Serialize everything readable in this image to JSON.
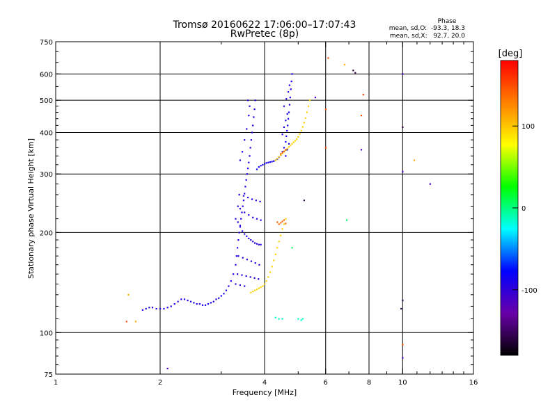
{
  "chart_data": {
    "type": "scatter",
    "title": "Tromsø 20160622 17:06:00–17:07:43",
    "subtitle": "RwPretec (8p)",
    "xlabel": "Frequency [MHz]",
    "ylabel": "Stationary phase Virtual Height [km]",
    "x_scale": "log2",
    "y_scale": "log",
    "xlim": [
      1,
      16
    ],
    "ylim": [
      75,
      750
    ],
    "grid": true,
    "xticks": [
      {
        "value": 1,
        "label": "1"
      },
      {
        "value": 2,
        "label": "2"
      },
      {
        "value": 4,
        "label": "4"
      },
      {
        "value": 6,
        "label": "6"
      },
      {
        "value": 8,
        "label": "8"
      },
      {
        "value": 10,
        "label": "10"
      },
      {
        "value": 16,
        "label": "16"
      }
    ],
    "yticks": [
      {
        "value": 75,
        "label": "75"
      },
      {
        "value": 100,
        "label": "100"
      },
      {
        "value": 200,
        "label": "200"
      },
      {
        "value": 300,
        "label": "300"
      },
      {
        "value": 400,
        "label": "400"
      },
      {
        "value": 500,
        "label": "500"
      },
      {
        "value": 600,
        "label": "600"
      },
      {
        "value": 750,
        "label": "750"
      }
    ],
    "phase_stats": {
      "heading": "Phase",
      "line_o": "mean, sd,O:  -93.3, 18.3",
      "line_x": "mean, sd,X:   92.7, 20.0"
    },
    "colorbar": {
      "label": "[deg]",
      "min": -180,
      "max": 180,
      "ticks": [
        {
          "value": 100,
          "label": "100"
        },
        {
          "value": 0,
          "label": "0"
        },
        {
          "value": -100,
          "label": "-100"
        }
      ],
      "stops": [
        "#000000",
        "#6a00a8",
        "#0000ff",
        "#00ffff",
        "#00ff00",
        "#ffff00",
        "#ff8000",
        "#ff0000"
      ]
    },
    "point_groups": [
      {
        "trace": "O",
        "phase": -90,
        "points": [
          [
            1.78,
            117
          ],
          [
            1.82,
            118
          ],
          [
            1.86,
            119
          ],
          [
            1.9,
            119
          ],
          [
            1.95,
            118
          ],
          [
            2.0,
            118
          ],
          [
            2.05,
            118
          ],
          [
            2.1,
            119
          ],
          [
            2.15,
            120
          ],
          [
            2.2,
            122
          ],
          [
            2.25,
            124
          ],
          [
            2.3,
            126
          ],
          [
            2.35,
            126
          ],
          [
            2.4,
            125
          ],
          [
            2.45,
            124
          ],
          [
            2.5,
            123
          ],
          [
            2.55,
            122
          ],
          [
            2.6,
            122
          ],
          [
            2.65,
            121
          ],
          [
            2.7,
            121
          ],
          [
            2.75,
            122
          ],
          [
            2.8,
            123
          ],
          [
            2.85,
            124
          ],
          [
            2.9,
            126
          ],
          [
            2.95,
            127
          ],
          [
            3.0,
            129
          ],
          [
            3.05,
            131
          ],
          [
            3.1,
            134
          ],
          [
            3.15,
            138
          ],
          [
            3.2,
            143
          ],
          [
            3.25,
            150
          ],
          [
            3.3,
            160
          ],
          [
            3.32,
            170
          ],
          [
            3.34,
            180
          ],
          [
            3.36,
            190
          ],
          [
            3.38,
            200
          ],
          [
            3.4,
            210
          ],
          [
            3.42,
            220
          ],
          [
            3.44,
            230
          ],
          [
            3.46,
            240
          ],
          [
            3.48,
            250
          ],
          [
            3.5,
            262
          ],
          [
            3.52,
            275
          ],
          [
            3.54,
            288
          ],
          [
            3.56,
            300
          ],
          [
            3.58,
            312
          ],
          [
            3.6,
            325
          ],
          [
            3.62,
            340
          ],
          [
            3.64,
            360
          ],
          [
            3.66,
            380
          ],
          [
            3.68,
            400
          ],
          [
            3.7,
            420
          ],
          [
            3.72,
            445
          ],
          [
            3.74,
            470
          ],
          [
            3.76,
            500
          ],
          [
            3.4,
            330
          ],
          [
            3.45,
            350
          ],
          [
            3.5,
            380
          ],
          [
            3.55,
            410
          ],
          [
            3.6,
            450
          ],
          [
            3.62,
            480
          ],
          [
            3.58,
            500
          ]
        ]
      },
      {
        "trace": "O",
        "phase": -95,
        "points": [
          [
            3.3,
            220
          ],
          [
            3.35,
            215
          ],
          [
            3.4,
            208
          ],
          [
            3.45,
            202
          ],
          [
            3.5,
            198
          ],
          [
            3.55,
            195
          ],
          [
            3.6,
            192
          ],
          [
            3.65,
            190
          ],
          [
            3.7,
            188
          ],
          [
            3.75,
            186
          ],
          [
            3.8,
            185
          ],
          [
            3.85,
            184
          ],
          [
            3.9,
            184
          ],
          [
            3.35,
            240
          ],
          [
            3.4,
            236
          ],
          [
            3.5,
            230
          ],
          [
            3.6,
            226
          ],
          [
            3.7,
            222
          ],
          [
            3.8,
            220
          ],
          [
            3.9,
            218
          ],
          [
            3.38,
            260
          ],
          [
            3.48,
            258
          ],
          [
            3.58,
            255
          ],
          [
            3.68,
            252
          ],
          [
            3.78,
            250
          ],
          [
            3.88,
            248
          ],
          [
            3.36,
            170
          ],
          [
            3.46,
            168
          ],
          [
            3.56,
            166
          ],
          [
            3.66,
            164
          ],
          [
            3.76,
            162
          ],
          [
            3.86,
            160
          ],
          [
            3.34,
            150
          ],
          [
            3.44,
            149
          ],
          [
            3.54,
            148
          ],
          [
            3.64,
            147
          ],
          [
            3.74,
            146
          ],
          [
            3.84,
            145
          ],
          [
            3.3,
            140
          ],
          [
            3.4,
            139
          ],
          [
            3.5,
            138
          ]
        ]
      },
      {
        "trace": "O",
        "phase": -88,
        "points": [
          [
            3.8,
            310
          ],
          [
            3.85,
            315
          ],
          [
            3.9,
            318
          ],
          [
            3.95,
            320
          ],
          [
            4.0,
            322
          ],
          [
            4.05,
            324
          ],
          [
            4.1,
            325
          ],
          [
            4.15,
            326
          ],
          [
            4.2,
            327
          ],
          [
            4.25,
            328
          ],
          [
            4.3,
            330
          ],
          [
            4.35,
            333
          ],
          [
            4.4,
            337
          ],
          [
            4.45,
            342
          ],
          [
            4.5,
            350
          ],
          [
            4.55,
            360
          ],
          [
            4.6,
            375
          ],
          [
            4.62,
            390
          ],
          [
            4.64,
            405
          ],
          [
            4.66,
            420
          ],
          [
            4.68,
            440
          ],
          [
            4.7,
            460
          ],
          [
            4.72,
            485
          ],
          [
            4.74,
            510
          ],
          [
            4.76,
            540
          ],
          [
            4.78,
            570
          ],
          [
            4.8,
            600
          ],
          [
            4.6,
            340
          ],
          [
            4.65,
            355
          ],
          [
            4.7,
            370
          ],
          [
            4.5,
            395
          ],
          [
            4.55,
            415
          ],
          [
            4.6,
            435
          ],
          [
            4.65,
            455
          ],
          [
            4.55,
            480
          ],
          [
            4.62,
            505
          ],
          [
            4.68,
            530
          ],
          [
            4.72,
            555
          ]
        ]
      },
      {
        "trace": "X",
        "phase": 95,
        "points": [
          [
            3.65,
            132
          ],
          [
            3.7,
            133
          ],
          [
            3.75,
            134
          ],
          [
            3.8,
            135
          ],
          [
            3.85,
            136
          ],
          [
            3.9,
            137
          ],
          [
            3.95,
            138
          ],
          [
            4.0,
            140
          ],
          [
            4.05,
            143
          ],
          [
            4.1,
            147
          ],
          [
            4.15,
            152
          ],
          [
            4.2,
            158
          ],
          [
            4.25,
            165
          ],
          [
            4.3,
            172
          ],
          [
            4.35,
            180
          ],
          [
            4.4,
            188
          ],
          [
            4.45,
            196
          ],
          [
            4.5,
            205
          ],
          [
            4.55,
            212
          ],
          [
            4.6,
            220
          ],
          [
            4.3,
            330
          ],
          [
            4.35,
            334
          ],
          [
            4.4,
            338
          ],
          [
            4.45,
            342
          ],
          [
            4.5,
            346
          ],
          [
            4.55,
            350
          ],
          [
            4.6,
            354
          ],
          [
            4.65,
            358
          ],
          [
            4.7,
            362
          ],
          [
            4.75,
            366
          ],
          [
            4.8,
            370
          ],
          [
            4.85,
            374
          ],
          [
            4.9,
            378
          ],
          [
            4.95,
            382
          ],
          [
            5.0,
            388
          ],
          [
            5.05,
            396
          ],
          [
            5.1,
            405
          ],
          [
            5.15,
            416
          ],
          [
            5.2,
            428
          ],
          [
            5.25,
            442
          ],
          [
            5.3,
            460
          ],
          [
            5.35,
            480
          ],
          [
            5.4,
            500
          ]
        ]
      },
      {
        "trace": "X",
        "phase": 140,
        "points": [
          [
            4.35,
            215
          ],
          [
            4.4,
            212
          ],
          [
            4.45,
            214
          ],
          [
            4.5,
            216
          ],
          [
            4.55,
            218
          ],
          [
            4.6,
            213
          ],
          [
            4.45,
            345
          ],
          [
            4.5,
            348
          ],
          [
            4.55,
            351
          ],
          [
            4.6,
            355
          ]
        ]
      },
      {
        "trace": "other",
        "phase": 5,
        "points": [
          [
            4.8,
            180
          ],
          [
            6.9,
            218
          ]
        ]
      },
      {
        "trace": "other",
        "phase": -15,
        "points": [
          [
            4.3,
            111
          ],
          [
            4.4,
            110
          ],
          [
            4.5,
            110
          ],
          [
            5.0,
            110
          ],
          [
            5.1,
            109
          ],
          [
            5.15,
            110
          ]
        ]
      },
      {
        "trace": "other",
        "phase": 150,
        "points": [
          [
            1.6,
            108
          ],
          [
            6.0,
            360
          ],
          [
            6.0,
            470
          ],
          [
            6.1,
            670
          ],
          [
            7.7,
            520
          ],
          [
            7.6,
            450
          ],
          [
            10.0,
            92
          ]
        ]
      },
      {
        "trace": "other",
        "phase": -160,
        "points": [
          [
            7.2,
            615
          ],
          [
            7.3,
            605
          ],
          [
            5.2,
            250
          ],
          [
            9.9,
            118
          ],
          [
            10.0,
            125
          ],
          [
            10.0,
            415
          ]
        ]
      },
      {
        "trace": "other",
        "phase": 110,
        "points": [
          [
            1.62,
            130
          ],
          [
            1.7,
            108
          ],
          [
            6.8,
            640
          ],
          [
            10.8,
            330
          ]
        ]
      },
      {
        "trace": "other",
        "phase": -110,
        "points": [
          [
            5.6,
            510
          ],
          [
            7.6,
            355
          ],
          [
            10.0,
            305
          ],
          [
            10.0,
            600
          ],
          [
            12.0,
            280
          ],
          [
            2.1,
            78
          ],
          [
            10.0,
            84
          ]
        ]
      }
    ]
  }
}
